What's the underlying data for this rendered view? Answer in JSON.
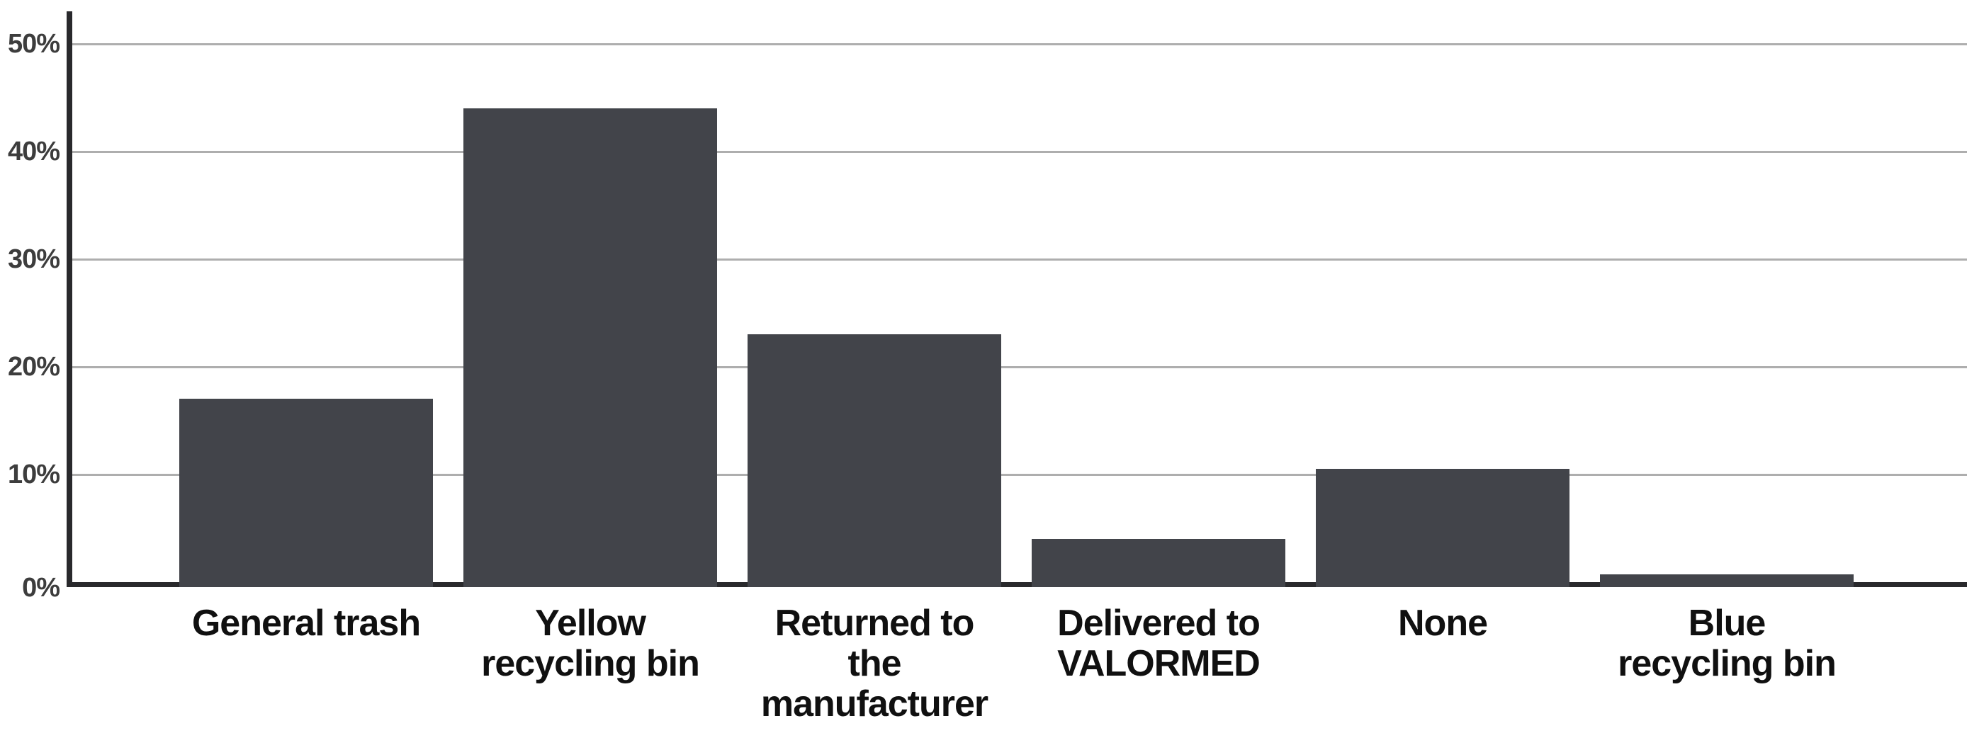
{
  "chart_data": {
    "type": "bar",
    "categories": [
      "General trash",
      "Yellow recycling bin",
      "Returned to the manufacturer",
      "Delivered to VALORMED",
      "None",
      "Blue recycling bin"
    ],
    "category_label_lines": [
      [
        "General trash"
      ],
      [
        "Yellow",
        "recycling bin"
      ],
      [
        "Returned to",
        "the",
        "manufacturer"
      ],
      [
        "Delivered to",
        "VALORMED"
      ],
      [
        "None"
      ],
      [
        "Blue",
        "recycling bin"
      ]
    ],
    "values": [
      17,
      44,
      23,
      4,
      10.5,
      0.7
    ],
    "unit": "%",
    "y_ticks": [
      0,
      10,
      20,
      30,
      40,
      50
    ],
    "y_tick_labels": [
      "0%",
      "10%",
      "20%",
      "30%",
      "40%",
      "50%"
    ],
    "ylim": [
      0,
      53
    ],
    "grid": "horizontal",
    "legend": "none",
    "bar_color": "#42444a",
    "axis_color": "#29292c",
    "gridline_color": "#aeaeae",
    "y_tick_label_color": "#3d3d3d",
    "category_label_color": "#101010",
    "background_color": "#ffffff"
  }
}
